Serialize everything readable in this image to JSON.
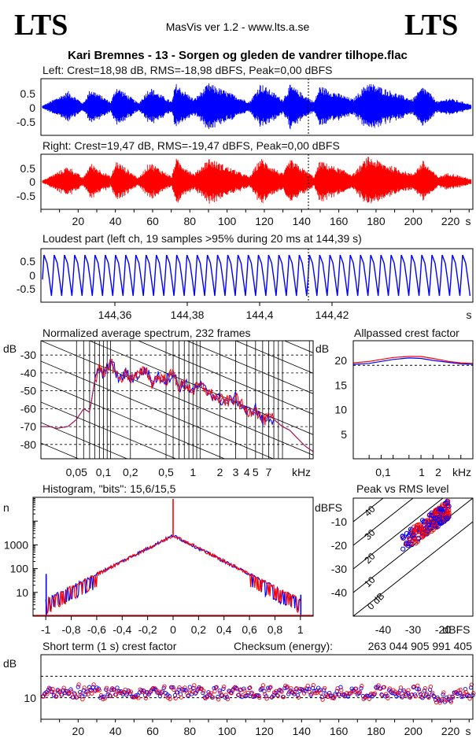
{
  "header": {
    "logo_left": "LTS",
    "logo_right": "LTS",
    "app_title": "MasVis ver 1.2 - www.lts.a.se",
    "file_title": "Kari Bremnes - 13 - Sorgen og gleden de vandrer tilhope.flac"
  },
  "colors": {
    "left": "#0000ff",
    "right": "#ff0000",
    "spectrum_avg": "#a02060"
  },
  "chart_data": [
    {
      "type": "line",
      "panel": "left_waveform",
      "title": "Left: Crest=18,98 dB, RMS=-18,98 dBFS, Peak=0,00 dBFS",
      "series": [
        {
          "name": "",
          "color": "#0000ff"
        }
      ],
      "yticks": [
        "0.5",
        "0",
        "-0.5"
      ],
      "ylim": [
        -1,
        1
      ],
      "xlim": [
        0,
        232
      ]
    },
    {
      "type": "line",
      "panel": "right_waveform",
      "title": "Right: Crest=19,47 dB, RMS=-19,47 dBFS, Peak=0,00 dBFS",
      "yticks": [
        "0.5",
        "0",
        "-0.5"
      ],
      "xticks": [
        "20",
        "40",
        "60",
        "80",
        "100",
        "120",
        "140",
        "160",
        "180",
        "200",
        "220",
        "s"
      ],
      "ylim": [
        -1,
        1
      ],
      "xlim": [
        0,
        232
      ]
    },
    {
      "type": "line",
      "panel": "loudest_part",
      "title": "Loudest part (left  ch, 19 samples >95% during 20 ms at 144,39 s)",
      "yticks": [
        "0.5",
        "0",
        "-0.5"
      ],
      "xticks": [
        "144,36",
        "144,38",
        "144,4",
        "144,42",
        "s"
      ],
      "xlim": [
        144.347,
        144.437
      ],
      "cycles": 42
    },
    {
      "type": "line",
      "panel": "spectrum",
      "title": "Normalized average spectrum, 232 frames",
      "ylabel": "dB",
      "yticks": [
        "-30",
        "-40",
        "-50",
        "-60",
        "-70",
        "-80"
      ],
      "xticks": [
        "0,05",
        "0,1",
        "0,2",
        "0,5",
        "1",
        "2",
        "3",
        "4",
        "5",
        "7",
        "kHz"
      ],
      "ylim": [
        -88,
        -22
      ],
      "xlim_khz": [
        0.02,
        22
      ],
      "points_khz_db": [
        [
          0.02,
          -70
        ],
        [
          0.025,
          -70
        ],
        [
          0.03,
          -71
        ],
        [
          0.04,
          -70
        ],
        [
          0.05,
          -66
        ],
        [
          0.06,
          -60
        ],
        [
          0.07,
          -62
        ],
        [
          0.08,
          -44
        ],
        [
          0.09,
          -38
        ],
        [
          0.1,
          -42
        ],
        [
          0.12,
          -33
        ],
        [
          0.15,
          -44
        ],
        [
          0.18,
          -40
        ],
        [
          0.2,
          -43
        ],
        [
          0.25,
          -41
        ],
        [
          0.3,
          -38
        ],
        [
          0.35,
          -46
        ],
        [
          0.4,
          -42
        ],
        [
          0.5,
          -44
        ],
        [
          0.6,
          -40
        ],
        [
          0.7,
          -48
        ],
        [
          0.8,
          -46
        ],
        [
          1.0,
          -50
        ],
        [
          1.2,
          -47
        ],
        [
          1.5,
          -51
        ],
        [
          2.0,
          -55
        ],
        [
          2.5,
          -56
        ],
        [
          3.0,
          -54
        ],
        [
          3.5,
          -58
        ],
        [
          4.0,
          -62
        ],
        [
          5.0,
          -60
        ],
        [
          6.0,
          -67
        ],
        [
          7.0,
          -65
        ],
        [
          8.0,
          -66
        ],
        [
          10.0,
          -70
        ],
        [
          12.0,
          -72
        ],
        [
          15.0,
          -77
        ],
        [
          18.0,
          -81
        ],
        [
          22.0,
          -84
        ]
      ]
    },
    {
      "type": "line",
      "panel": "allpassed_crest",
      "title": "Allpassed crest factor",
      "ylabel": "dB",
      "yticks": [
        "20",
        "15",
        "10",
        "5"
      ],
      "xticks": [
        "0,1",
        "1",
        "2",
        "kHz"
      ],
      "ylim": [
        0,
        24
      ],
      "series": [
        {
          "name": "",
          "color": "#0000ff",
          "points_khz_db": [
            [
              0.02,
              19.2
            ],
            [
              0.05,
              19.4
            ],
            [
              0.1,
              19.8
            ],
            [
              0.2,
              20.2
            ],
            [
              0.5,
              20.5
            ],
            [
              1,
              20.4
            ],
            [
              2,
              20.0
            ],
            [
              5,
              19.6
            ],
            [
              10,
              19.3
            ],
            [
              20,
              19.2
            ]
          ]
        },
        {
          "name": "",
          "color": "#ff0000",
          "points_khz_db": [
            [
              0.02,
              19.5
            ],
            [
              0.05,
              19.8
            ],
            [
              0.1,
              20.2
            ],
            [
              0.2,
              20.6
            ],
            [
              0.5,
              20.8
            ],
            [
              1,
              20.8
            ],
            [
              2,
              20.4
            ],
            [
              5,
              19.8
            ],
            [
              10,
              19.5
            ],
            [
              20,
              19.4
            ]
          ]
        }
      ],
      "ref_db": 19
    },
    {
      "type": "bar",
      "panel": "histogram",
      "title": "Histogram, \"bits\": 15,6/15,5",
      "ylabel": "n",
      "yticks": [
        "1000",
        "100",
        "10"
      ],
      "xticks": [
        "-1",
        "-0,8",
        "-0,6",
        "-0,4",
        "-0,2",
        "0",
        "0,2",
        "0,4",
        "0,6",
        "0,8",
        "1"
      ],
      "xlim": [
        -1.1,
        1.1
      ],
      "ylog_range": [
        1,
        100000
      ],
      "peak_count": 2500
    },
    {
      "type": "scatter",
      "panel": "peak_vs_rms",
      "title": "Peak vs RMS level",
      "ylabel": "dBFS",
      "xlabel": "dBFS",
      "yticks": [
        "-10",
        "-20",
        "-30",
        "-40"
      ],
      "xticks": [
        "-40",
        "-30",
        "-20"
      ],
      "diag_labels": [
        "40",
        "30",
        "20",
        "10",
        "0 dB"
      ],
      "xlim": [
        -50,
        -10
      ],
      "ylim": [
        -50,
        0
      ]
    },
    {
      "type": "scatter",
      "panel": "short_term_crest",
      "title": "Short term (1 s) crest factor",
      "ylabel": "dB",
      "yticks": [
        "10"
      ],
      "xticks": [
        "20",
        "40",
        "60",
        "80",
        "100",
        "120",
        "140",
        "160",
        "180",
        "200",
        "220",
        "s"
      ],
      "xlim": [
        0,
        232
      ],
      "ylim": [
        0,
        30
      ]
    }
  ],
  "checksum": {
    "label": "Checksum (energy):",
    "value": "263 044 905 991 405"
  }
}
